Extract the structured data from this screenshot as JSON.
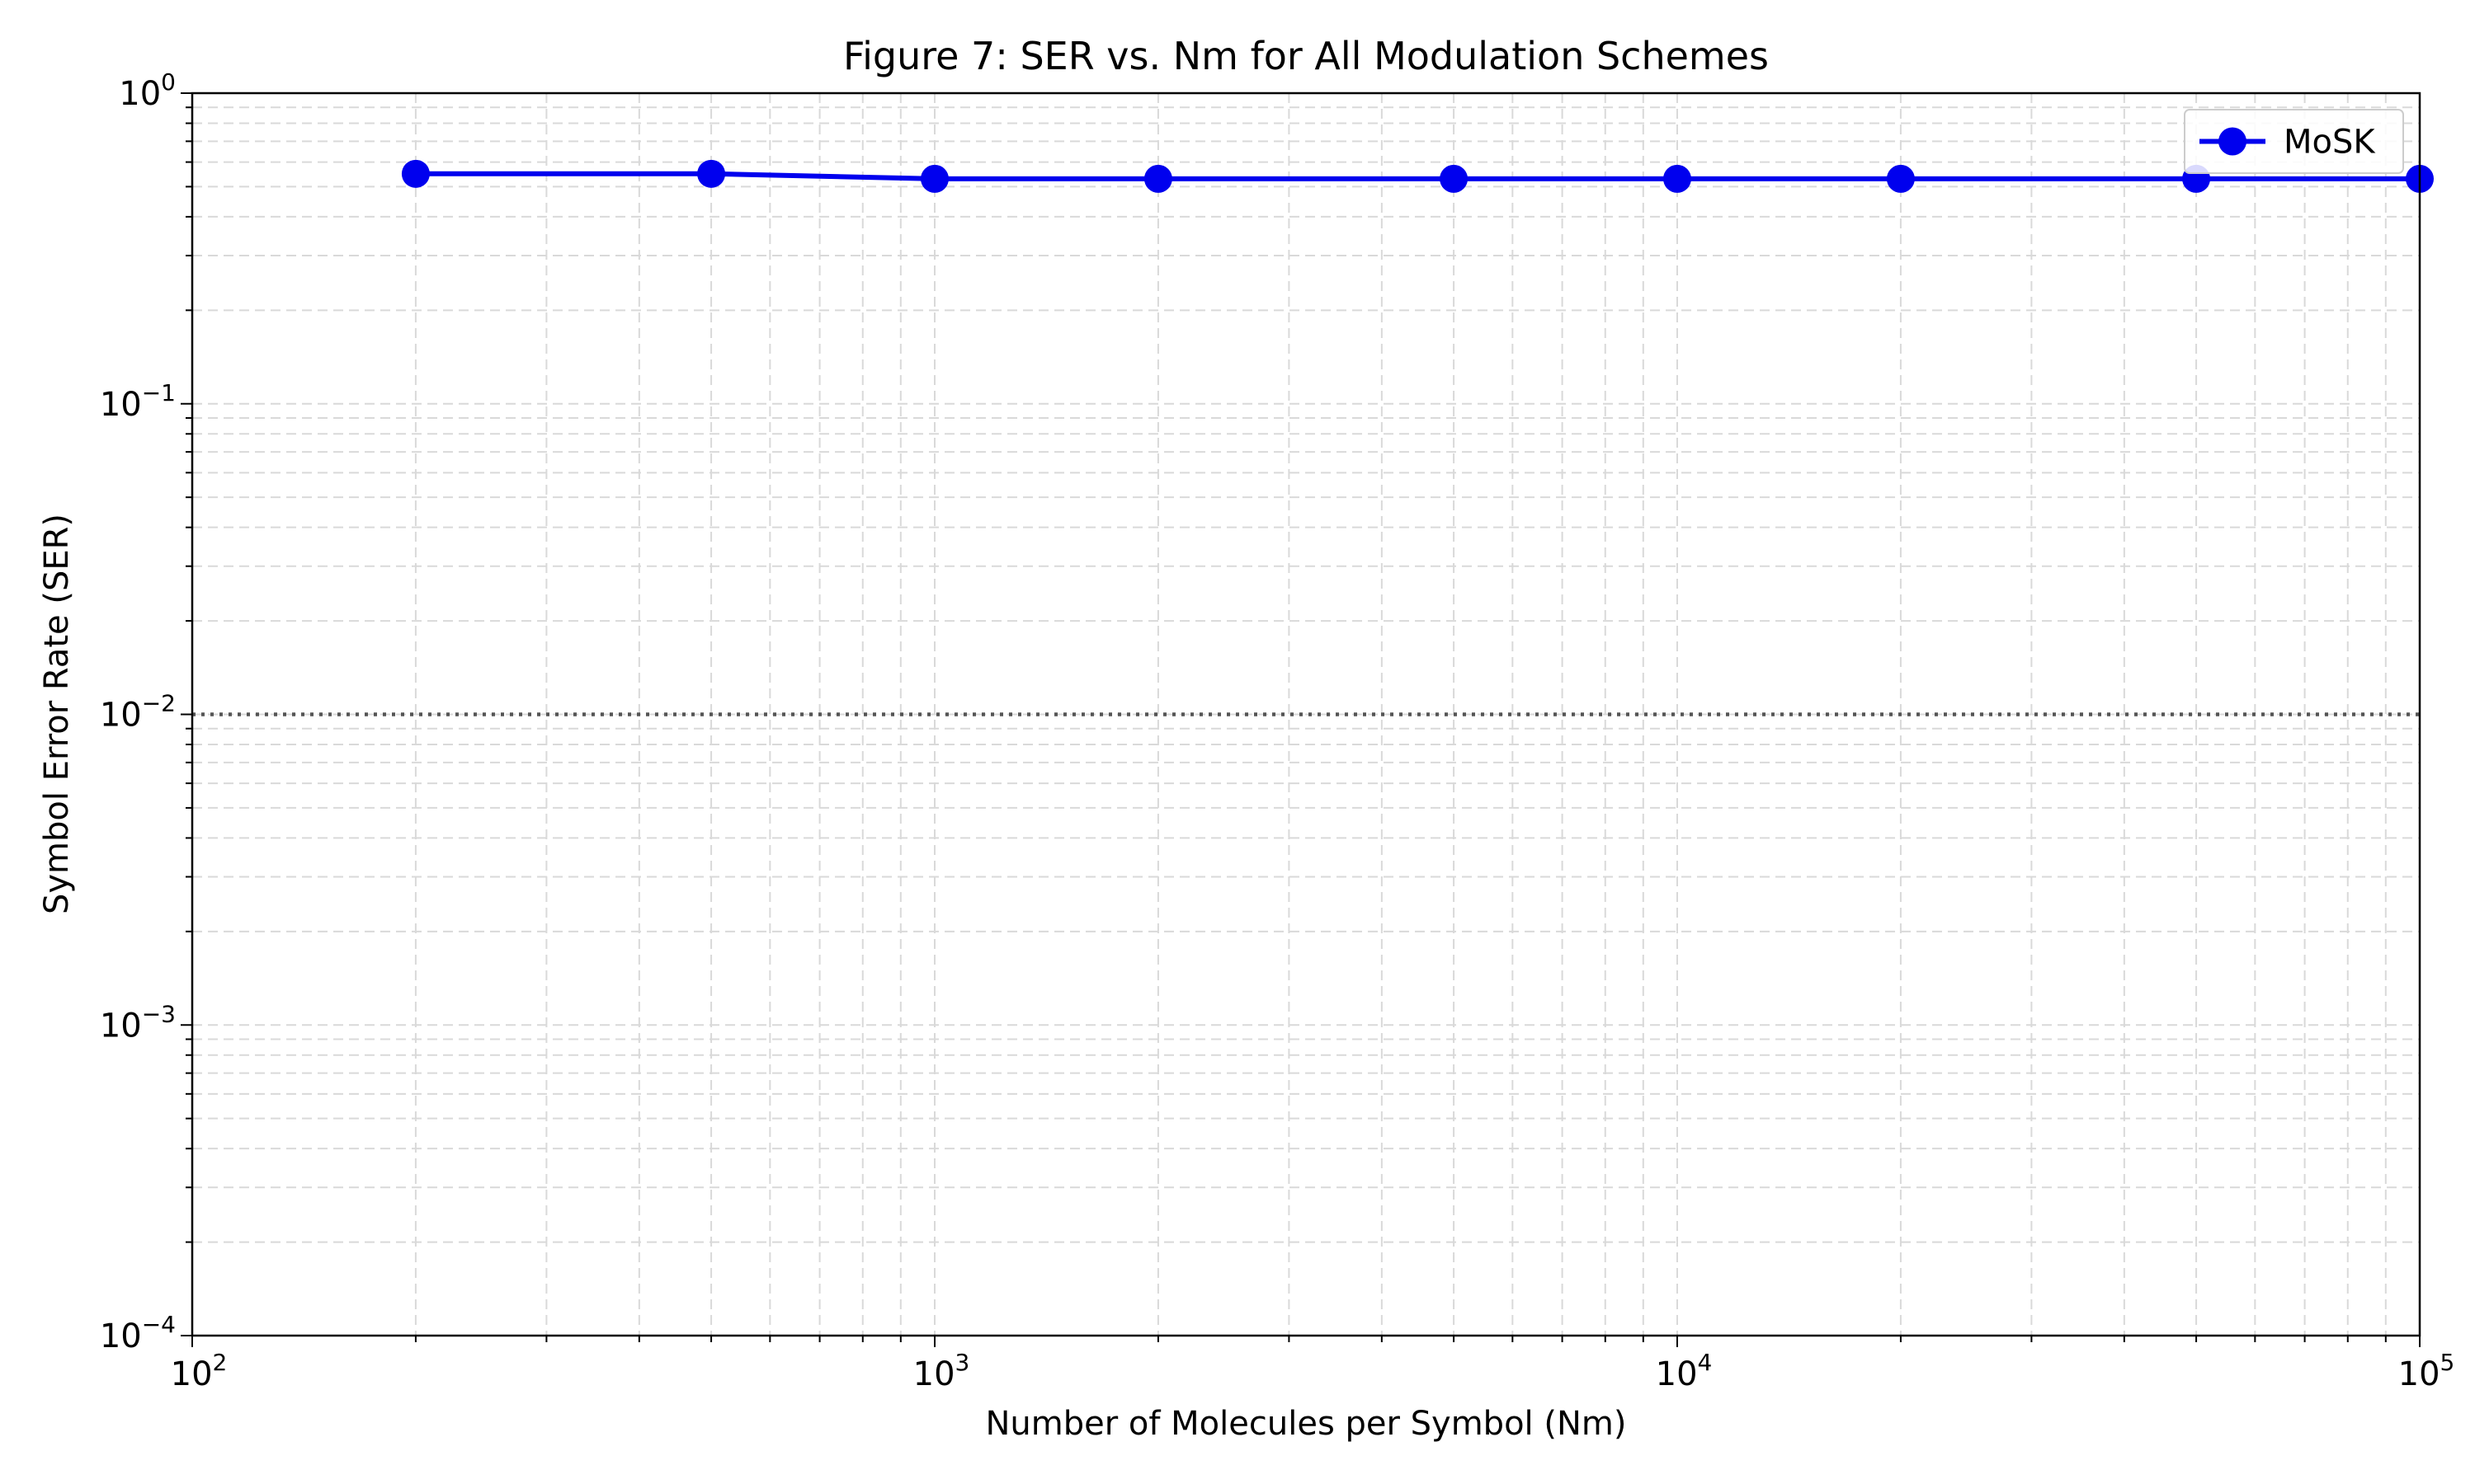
{
  "chart_data": {
    "type": "line",
    "title": "Figure 7: SER vs. Nm for All Modulation Schemes",
    "xlabel": "Number of Molecules per Symbol (Nm)",
    "ylabel": "Symbol Error Rate (SER)",
    "xscale": "log",
    "yscale": "log",
    "xlim": [
      100,
      100000
    ],
    "ylim": [
      0.0001,
      1
    ],
    "x_ticks": [
      {
        "base": "10",
        "exp": "2"
      },
      {
        "base": "10",
        "exp": "3"
      },
      {
        "base": "10",
        "exp": "4"
      },
      {
        "base": "10",
        "exp": "5"
      }
    ],
    "y_ticks": [
      {
        "base": "10",
        "exp": "0"
      },
      {
        "base": "10",
        "exp": "−1"
      },
      {
        "base": "10",
        "exp": "−2"
      },
      {
        "base": "10",
        "exp": "−3"
      },
      {
        "base": "10",
        "exp": "−4"
      }
    ],
    "grid": true,
    "legend_position": "top-right",
    "reference_line": {
      "y": 0.01,
      "style": "dotted",
      "color": "#555555"
    },
    "series": [
      {
        "name": "MoSK",
        "color": "#0000ee",
        "marker": "circle",
        "x": [
          200,
          500,
          1000,
          2000,
          5000,
          10000,
          20000,
          50000,
          100000
        ],
        "y": [
          0.55,
          0.55,
          0.53,
          0.53,
          0.53,
          0.53,
          0.53,
          0.53,
          0.53
        ]
      }
    ]
  }
}
